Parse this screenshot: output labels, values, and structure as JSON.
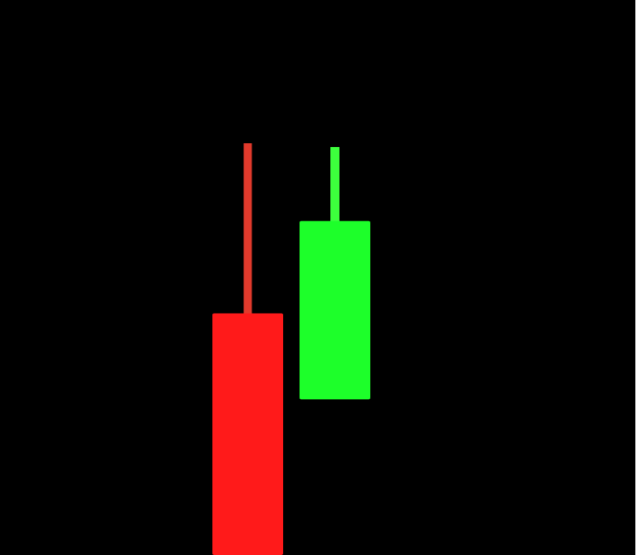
{
  "chart_data": {
    "type": "candlestick",
    "candles": [
      {
        "index": 1,
        "direction": "up",
        "color_name": "red",
        "high": 100,
        "top": 58.7,
        "bottom": 0
      },
      {
        "index": 2,
        "direction": "down",
        "color_name": "green",
        "high": 99.1,
        "top": 81.1,
        "bottom": 37.8
      }
    ],
    "ylim": [
      0,
      100
    ],
    "grid": false,
    "legend": "none"
  },
  "colors": {
    "background": "#000000",
    "up": "#ff1a1a",
    "up_wick": "#e23a2c",
    "down": "#1dff2a",
    "down_wick": "#3dff3d"
  }
}
